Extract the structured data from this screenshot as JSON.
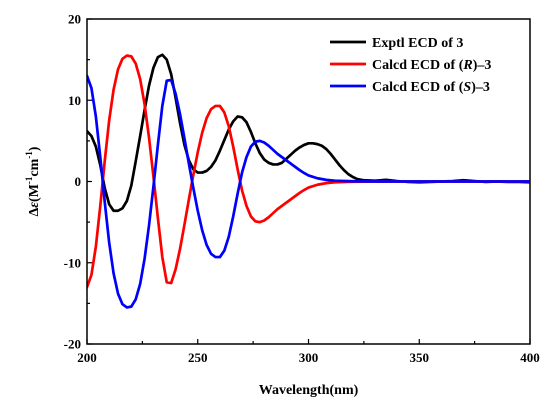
{
  "chart_data": {
    "type": "line",
    "xlabel": "Wavelength(nm)",
    "ylabel_parts": {
      "prefix": "Δ",
      "symbol": "ε",
      "unit_open": "(M",
      "sup1": "-1",
      "unit_mid": "cm",
      "sup2": "-1",
      "unit_close": ")"
    },
    "xlim": [
      200,
      400
    ],
    "ylim": [
      -20,
      20
    ],
    "x_ticks": [
      200,
      250,
      300,
      350,
      400
    ],
    "y_ticks": [
      -20,
      -10,
      0,
      10,
      20
    ],
    "grid": false,
    "legend_position": "top-right",
    "series": [
      {
        "name": "Exptl ECD of 3",
        "color": "#000000",
        "points": [
          [
            200,
            6.2
          ],
          [
            202,
            5.6
          ],
          [
            204,
            4.3
          ],
          [
            206,
            2.0
          ],
          [
            208,
            -0.8
          ],
          [
            210,
            -2.8
          ],
          [
            212,
            -3.6
          ],
          [
            214,
            -3.6
          ],
          [
            216,
            -3.3
          ],
          [
            218,
            -2.4
          ],
          [
            220,
            -0.5
          ],
          [
            222,
            2.5
          ],
          [
            224,
            5.6
          ],
          [
            226,
            8.8
          ],
          [
            228,
            11.8
          ],
          [
            230,
            14.0
          ],
          [
            232,
            15.3
          ],
          [
            234,
            15.6
          ],
          [
            236,
            15.0
          ],
          [
            238,
            13.2
          ],
          [
            240,
            10.3
          ],
          [
            242,
            7.2
          ],
          [
            244,
            4.5
          ],
          [
            246,
            2.6
          ],
          [
            248,
            1.5
          ],
          [
            250,
            1.1
          ],
          [
            252,
            1.1
          ],
          [
            254,
            1.3
          ],
          [
            256,
            1.8
          ],
          [
            258,
            2.6
          ],
          [
            260,
            3.8
          ],
          [
            262,
            5.1
          ],
          [
            264,
            6.4
          ],
          [
            266,
            7.4
          ],
          [
            268,
            8.0
          ],
          [
            270,
            7.9
          ],
          [
            272,
            7.3
          ],
          [
            274,
            6.1
          ],
          [
            276,
            4.7
          ],
          [
            278,
            3.5
          ],
          [
            280,
            2.7
          ],
          [
            282,
            2.3
          ],
          [
            284,
            2.1
          ],
          [
            286,
            2.1
          ],
          [
            288,
            2.3
          ],
          [
            290,
            2.8
          ],
          [
            292,
            3.3
          ],
          [
            294,
            3.8
          ],
          [
            296,
            4.2
          ],
          [
            298,
            4.5
          ],
          [
            300,
            4.7
          ],
          [
            302,
            4.7
          ],
          [
            304,
            4.6
          ],
          [
            306,
            4.4
          ],
          [
            308,
            4.0
          ],
          [
            310,
            3.4
          ],
          [
            312,
            2.7
          ],
          [
            314,
            2.0
          ],
          [
            316,
            1.4
          ],
          [
            318,
            0.9
          ],
          [
            320,
            0.55
          ],
          [
            322,
            0.3
          ],
          [
            325,
            0.15
          ],
          [
            330,
            0.1
          ],
          [
            335,
            0.2
          ],
          [
            340,
            0.05
          ],
          [
            345,
            -0.05
          ],
          [
            350,
            -0.1
          ],
          [
            355,
            -0.05
          ],
          [
            360,
            0.0
          ],
          [
            365,
            0.05
          ],
          [
            370,
            0.15
          ],
          [
            375,
            0.05
          ],
          [
            380,
            -0.05
          ],
          [
            385,
            0.0
          ],
          [
            390,
            -0.05
          ],
          [
            395,
            -0.05
          ],
          [
            400,
            -0.1
          ]
        ]
      },
      {
        "name": "Calcd ECD of (R)–3",
        "name_parts": [
          "Calcd ECD of (",
          "R",
          ")–3"
        ],
        "color": "#ff0000",
        "points": [
          [
            200,
            -13.0
          ],
          [
            202,
            -11.5
          ],
          [
            204,
            -8.0
          ],
          [
            206,
            -3.0
          ],
          [
            208,
            2.5
          ],
          [
            210,
            7.5
          ],
          [
            212,
            11.3
          ],
          [
            214,
            13.8
          ],
          [
            216,
            15.1
          ],
          [
            218,
            15.5
          ],
          [
            220,
            15.4
          ],
          [
            222,
            14.5
          ],
          [
            224,
            12.6
          ],
          [
            226,
            9.5
          ],
          [
            228,
            5.4
          ],
          [
            230,
            0.6
          ],
          [
            232,
            -4.5
          ],
          [
            234,
            -9.3
          ],
          [
            236,
            -12.4
          ],
          [
            238,
            -12.5
          ],
          [
            240,
            -10.8
          ],
          [
            242,
            -8.3
          ],
          [
            244,
            -5.3
          ],
          [
            246,
            -2.2
          ],
          [
            248,
            0.8
          ],
          [
            250,
            3.6
          ],
          [
            252,
            6.0
          ],
          [
            254,
            7.8
          ],
          [
            256,
            8.9
          ],
          [
            258,
            9.3
          ],
          [
            260,
            9.3
          ],
          [
            262,
            8.5
          ],
          [
            264,
            6.8
          ],
          [
            266,
            4.3
          ],
          [
            268,
            1.5
          ],
          [
            270,
            -1.1
          ],
          [
            272,
            -3.0
          ],
          [
            274,
            -4.3
          ],
          [
            276,
            -4.9
          ],
          [
            278,
            -5.0
          ],
          [
            280,
            -4.8
          ],
          [
            282,
            -4.4
          ],
          [
            284,
            -3.9
          ],
          [
            286,
            -3.4
          ],
          [
            288,
            -3.0
          ],
          [
            290,
            -2.6
          ],
          [
            292,
            -2.2
          ],
          [
            294,
            -1.8
          ],
          [
            296,
            -1.4
          ],
          [
            298,
            -1.05
          ],
          [
            300,
            -0.75
          ],
          [
            304,
            -0.4
          ],
          [
            308,
            -0.2
          ],
          [
            312,
            -0.1
          ],
          [
            320,
            -0.03
          ],
          [
            330,
            0.0
          ],
          [
            350,
            0.0
          ],
          [
            400,
            0.0
          ]
        ]
      },
      {
        "name": "Calcd ECD of (S)–3",
        "name_parts": [
          "Calcd ECD of (",
          "S",
          ")–3"
        ],
        "color": "#0000ff",
        "points": [
          [
            200,
            13.0
          ],
          [
            202,
            11.5
          ],
          [
            204,
            8.0
          ],
          [
            206,
            3.0
          ],
          [
            208,
            -2.5
          ],
          [
            210,
            -7.5
          ],
          [
            212,
            -11.3
          ],
          [
            214,
            -13.8
          ],
          [
            216,
            -15.1
          ],
          [
            218,
            -15.5
          ],
          [
            220,
            -15.4
          ],
          [
            222,
            -14.5
          ],
          [
            224,
            -12.6
          ],
          [
            226,
            -9.5
          ],
          [
            228,
            -5.4
          ],
          [
            230,
            -0.6
          ],
          [
            232,
            4.5
          ],
          [
            234,
            9.3
          ],
          [
            236,
            12.4
          ],
          [
            238,
            12.5
          ],
          [
            240,
            10.8
          ],
          [
            242,
            8.3
          ],
          [
            244,
            5.3
          ],
          [
            246,
            2.2
          ],
          [
            248,
            -0.8
          ],
          [
            250,
            -3.6
          ],
          [
            252,
            -6.0
          ],
          [
            254,
            -7.8
          ],
          [
            256,
            -8.9
          ],
          [
            258,
            -9.3
          ],
          [
            260,
            -9.3
          ],
          [
            262,
            -8.5
          ],
          [
            264,
            -6.8
          ],
          [
            266,
            -4.3
          ],
          [
            268,
            -1.5
          ],
          [
            270,
            1.1
          ],
          [
            272,
            3.0
          ],
          [
            274,
            4.3
          ],
          [
            276,
            4.9
          ],
          [
            278,
            5.0
          ],
          [
            280,
            4.8
          ],
          [
            282,
            4.4
          ],
          [
            284,
            3.9
          ],
          [
            286,
            3.4
          ],
          [
            288,
            3.0
          ],
          [
            290,
            2.6
          ],
          [
            292,
            2.2
          ],
          [
            294,
            1.8
          ],
          [
            296,
            1.4
          ],
          [
            298,
            1.05
          ],
          [
            300,
            0.75
          ],
          [
            304,
            0.4
          ],
          [
            308,
            0.2
          ],
          [
            312,
            0.1
          ],
          [
            320,
            0.03
          ],
          [
            330,
            0.0
          ],
          [
            350,
            0.0
          ],
          [
            400,
            0.0
          ]
        ]
      }
    ]
  }
}
